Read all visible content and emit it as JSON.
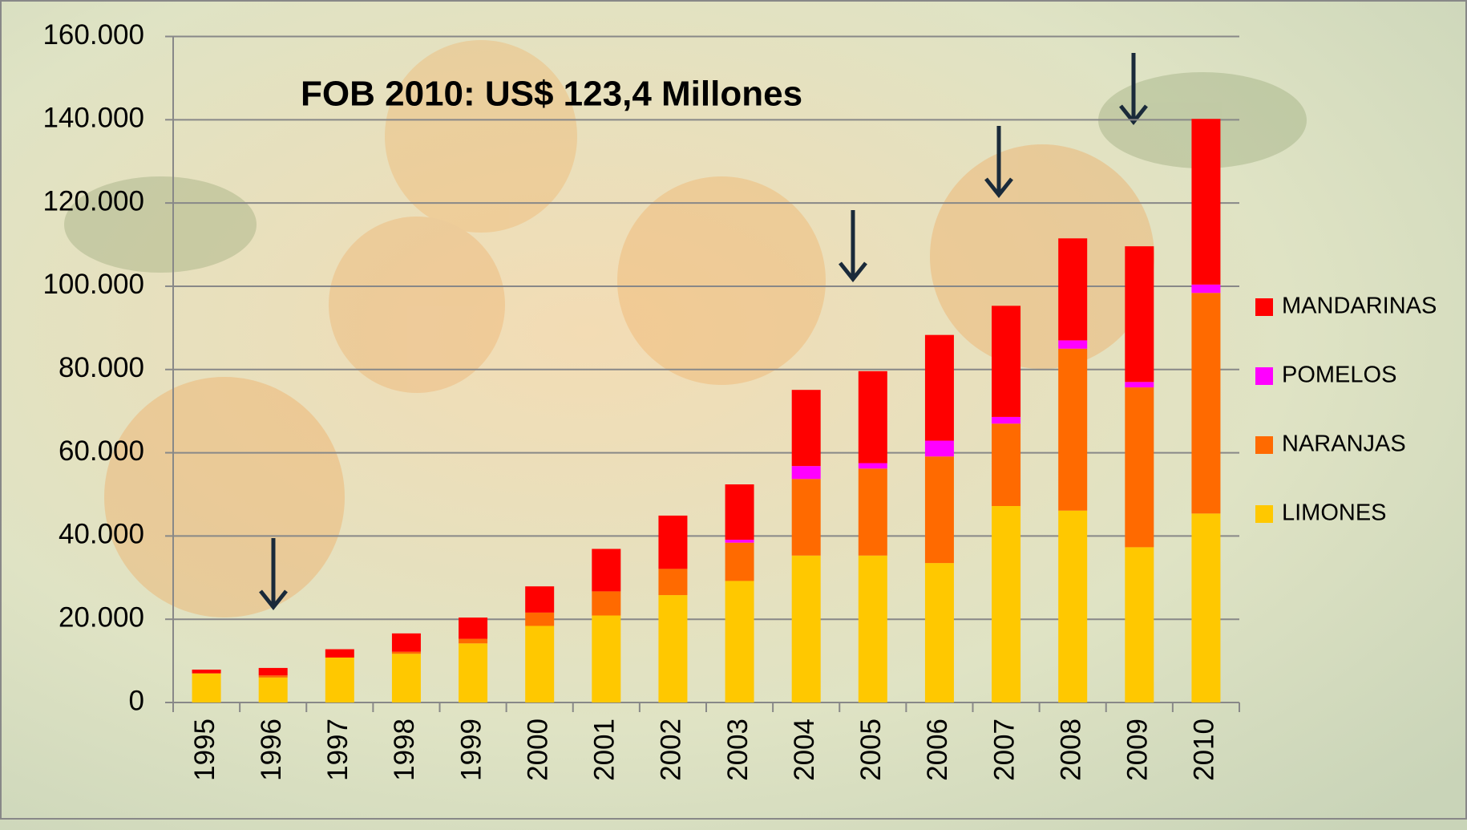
{
  "chart_data": {
    "type": "stacked-bar",
    "title": "FOB 2010: US$ 123,4 Millones",
    "categories": [
      "1995",
      "1996",
      "1997",
      "1998",
      "1999",
      "2000",
      "2001",
      "2002",
      "2003",
      "2004",
      "2005",
      "2006",
      "2007",
      "2008",
      "2009",
      "2010"
    ],
    "series": [
      {
        "name": "LIMONES",
        "color": "#ffc800",
        "values": [
          7000,
          6000,
          10800,
          11700,
          14200,
          18400,
          20900,
          25800,
          29200,
          35300,
          35300,
          33500,
          47200,
          46100,
          37300,
          45400
        ]
      },
      {
        "name": "NARANJAS",
        "color": "#ff6a00",
        "values": [
          0,
          500,
          0,
          500,
          1100,
          3200,
          5800,
          6300,
          9200,
          18400,
          20900,
          25600,
          19800,
          38900,
          38400,
          53000
        ]
      },
      {
        "name": "POMELOS",
        "color": "#ff00ff",
        "values": [
          0,
          0,
          0,
          0,
          0,
          0,
          0,
          0,
          700,
          3100,
          1300,
          3800,
          1600,
          2000,
          1300,
          2000
        ]
      },
      {
        "name": "MANDARINAS",
        "color": "#ff0000",
        "values": [
          900,
          1800,
          2000,
          4400,
          5100,
          6300,
          10200,
          12800,
          13300,
          18300,
          22100,
          25400,
          26700,
          24500,
          32600,
          39800
        ]
      }
    ],
    "ylim": [
      0,
      160000
    ],
    "yticks": [
      0,
      {
        "value": 20000,
        "label": "20.000"
      },
      {
        "value": 40000,
        "label": "40.000"
      },
      {
        "value": 60000,
        "label": "60.000"
      },
      {
        "value": 80000,
        "label": "80.000"
      },
      {
        "value": 100000,
        "label": "100.000"
      },
      {
        "value": 120000,
        "label": "120.000"
      },
      {
        "value": 140000,
        "label": "140.000"
      },
      {
        "value": 160000,
        "label": "160.000"
      }
    ],
    "grid": true,
    "legend": "right"
  }
}
